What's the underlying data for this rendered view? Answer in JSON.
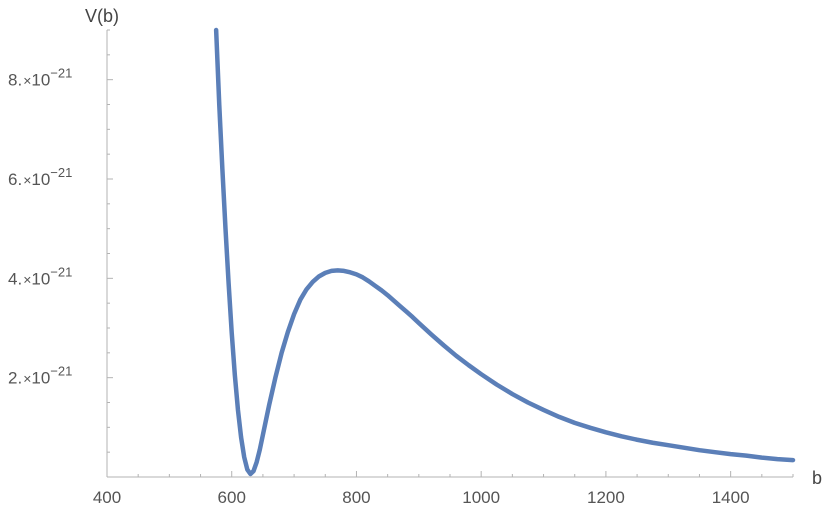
{
  "chart_data": {
    "type": "line",
    "title": "",
    "xlabel": "b",
    "ylabel": "V(b)",
    "xlim": [
      400,
      1500
    ],
    "ylim": [
      0,
      9e-21
    ],
    "grid": false,
    "legend": "none",
    "x_ticks": [
      {
        "value": 400,
        "label": "400"
      },
      {
        "value": 600,
        "label": "600"
      },
      {
        "value": 800,
        "label": "800"
      },
      {
        "value": 1000,
        "label": "1000"
      },
      {
        "value": 1200,
        "label": "1200"
      },
      {
        "value": 1400,
        "label": "1400"
      }
    ],
    "y_ticks": [
      {
        "value": 2e-21,
        "mantissa": "2.",
        "times": "×",
        "base": "10",
        "exponent": "−21"
      },
      {
        "value": 4e-21,
        "mantissa": "4.",
        "times": "×",
        "base": "10",
        "exponent": "−21"
      },
      {
        "value": 6e-21,
        "mantissa": "6.",
        "times": "×",
        "base": "10",
        "exponent": "−21"
      },
      {
        "value": 8e-21,
        "mantissa": "8.",
        "times": "×",
        "base": "10",
        "exponent": "−21"
      }
    ],
    "x_minor_step": 50,
    "y_minor_step": 5e-22,
    "series": [
      {
        "color": "#5b7fb8",
        "x": [
          575,
          580,
          585,
          590,
          595,
          600,
          605,
          610,
          615,
          620,
          625,
          630,
          635,
          640,
          645,
          650,
          655,
          660,
          670,
          680,
          690,
          700,
          710,
          720,
          730,
          740,
          750,
          760,
          770,
          780,
          790,
          800,
          810,
          820,
          830,
          840,
          850,
          860,
          870,
          880,
          890,
          900,
          920,
          940,
          960,
          980,
          1000,
          1025,
          1050,
          1075,
          1100,
          1125,
          1150,
          1175,
          1200,
          1225,
          1250,
          1275,
          1300,
          1325,
          1350,
          1375,
          1400,
          1425,
          1450,
          1475,
          1500
        ],
        "y": [
          9e-21,
          7.5e-21,
          6.2e-21,
          5e-21,
          3.9e-21,
          2.9e-21,
          2.05e-21,
          1.35e-21,
          8e-22,
          4e-22,
          1.5e-22,
          6e-23,
          1.2e-22,
          3e-22,
          5.5e-22,
          8.5e-22,
          1.15e-21,
          1.45e-21,
          2e-21,
          2.5e-21,
          2.92e-21,
          3.28e-21,
          3.57e-21,
          3.78e-21,
          3.93e-21,
          4.04e-21,
          4.11e-21,
          4.15e-21,
          4.16e-21,
          4.15e-21,
          4.12e-21,
          4.08e-21,
          4.02e-21,
          3.94e-21,
          3.85e-21,
          3.76e-21,
          3.66e-21,
          3.55e-21,
          3.44e-21,
          3.33e-21,
          3.22e-21,
          3.1e-21,
          2.87e-21,
          2.65e-21,
          2.44e-21,
          2.25e-21,
          2.07e-21,
          1.86e-21,
          1.67e-21,
          1.5e-21,
          1.35e-21,
          1.21e-21,
          1.09e-21,
          9.9e-22,
          9e-22,
          8.2e-22,
          7.5e-22,
          6.9e-22,
          6.4e-22,
          5.9e-22,
          5.4e-22,
          5e-22,
          4.6e-22,
          4.3e-22,
          3.9e-22,
          3.6e-22,
          3.4e-22
        ]
      }
    ]
  }
}
